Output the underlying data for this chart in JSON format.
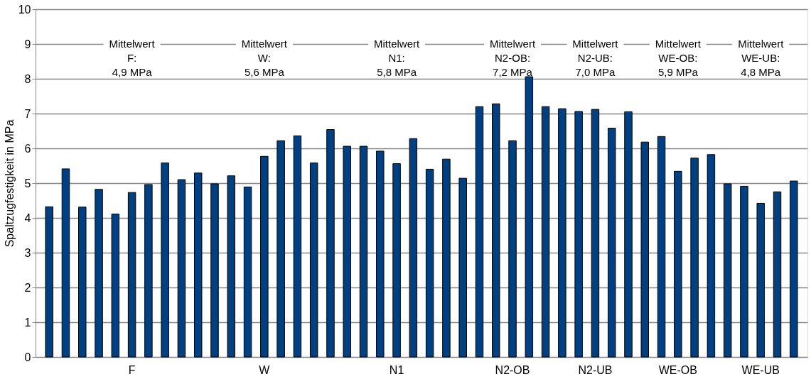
{
  "chart_data": {
    "type": "bar",
    "ylabel": "Spaltzugfestigkeit in MPa",
    "categories": [
      null,
      null,
      null,
      null,
      null,
      "F",
      null,
      null,
      null,
      null,
      null,
      null,
      null,
      "W",
      null,
      null,
      null,
      null,
      null,
      null,
      null,
      "N1",
      null,
      null,
      null,
      null,
      null,
      null,
      "N2-OB",
      null,
      null,
      null,
      null,
      "N2-UB",
      null,
      null,
      null,
      null,
      "WE-OB",
      null,
      null,
      null,
      null,
      "WE-UB",
      null,
      null
    ],
    "values": [
      4.32,
      5.41,
      4.31,
      4.82,
      4.11,
      4.73,
      4.96,
      5.58,
      5.1,
      5.29,
      4.98,
      5.21,
      4.89,
      5.77,
      6.22,
      6.36,
      5.58,
      6.54,
      6.06,
      6.06,
      5.92,
      5.56,
      6.28,
      5.4,
      5.69,
      5.14,
      7.2,
      7.28,
      6.22,
      8.06,
      7.2,
      7.14,
      7.06,
      7.12,
      6.58,
      7.05,
      6.18,
      6.34,
      5.34,
      5.72,
      5.82,
      4.98,
      4.91,
      4.42,
      4.75,
      5.06
    ],
    "color": "#004080",
    "ylim": [
      0,
      10
    ],
    "yticks": [
      0,
      1,
      2,
      3,
      4,
      5,
      6,
      7,
      8,
      9,
      10
    ],
    "grid": "y",
    "annotations": [
      "Mittelwert\nF:\n4,9 MPa",
      "Mittelwert\nW:\n5,6 MPa",
      "Mittelwert\nN1:\n5,8 MPa",
      "Mittelwert\nN2-OB:\n7,2 MPa",
      "Mittelwert\nN2-UB:\n7,0 MPa",
      "Mittelwert\nWE-OB:\n5,9 MPa",
      "Mittelwert\nWE-UB:\n4,8 MPa"
    ]
  }
}
